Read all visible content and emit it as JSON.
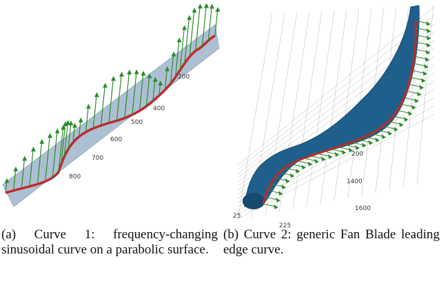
{
  "figures": [
    {
      "caption": "(a) Curve 1: frequency-changing sinusoidal curve on a parabolic surface.",
      "tick_labels": [
        "200",
        "400",
        "500",
        "600",
        "700",
        "800"
      ]
    },
    {
      "caption": "(b) Curve 2: generic Fan Blade leading edge curve.",
      "tick_labels": [
        "200",
        "1400",
        "1600",
        "25",
        "225"
      ]
    }
  ]
}
